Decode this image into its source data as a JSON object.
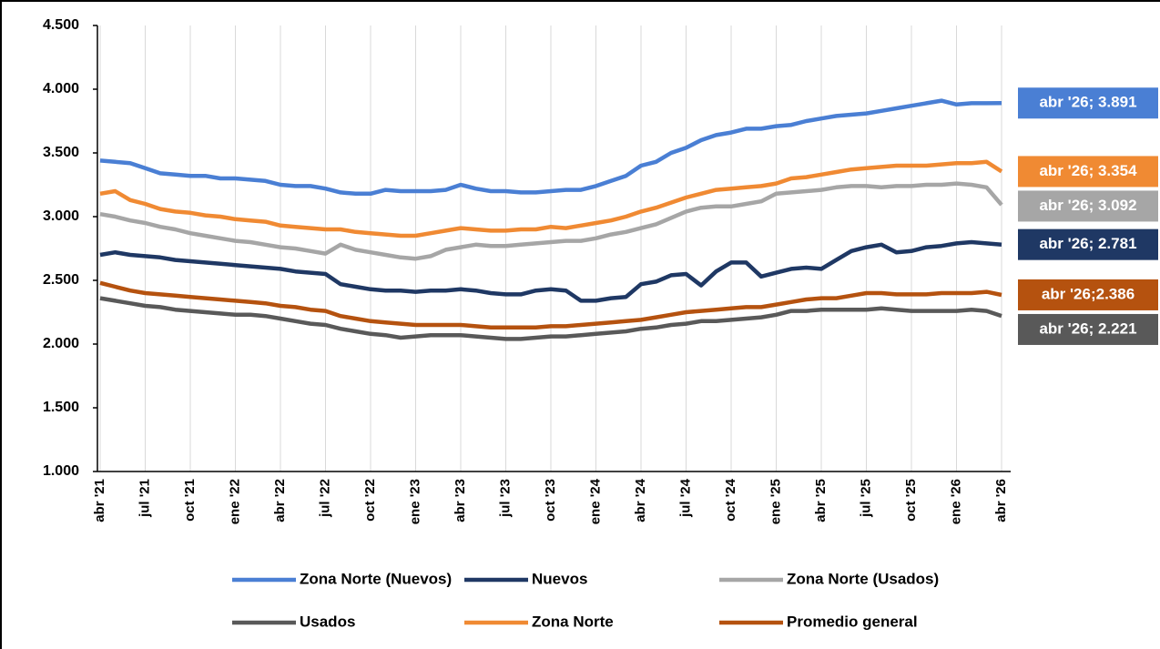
{
  "chart_data": {
    "type": "line",
    "categories": [
      "abr '21",
      null,
      null,
      "jul '21",
      null,
      null,
      "oct '21",
      null,
      null,
      "ene '22",
      null,
      null,
      "abr '22",
      null,
      null,
      "jul '22",
      null,
      null,
      "oct '22",
      null,
      null,
      "ene '23",
      null,
      null,
      "abr '23",
      null,
      null,
      "jul '23",
      null,
      null,
      "oct '23",
      null,
      null,
      "ene '24",
      null,
      null,
      "abr '24",
      null,
      null,
      "jul '24",
      null,
      null,
      "oct '24",
      null,
      null,
      "ene '25",
      null,
      null,
      "abr '25",
      null,
      null,
      "jul '25",
      null,
      null,
      "oct '25",
      null,
      null,
      "ene '26",
      null,
      null,
      "abr '26"
    ],
    "ylim": [
      1000,
      4500
    ],
    "yticks": [
      {
        "value": 1000,
        "label": "1.000"
      },
      {
        "value": 1500,
        "label": "1.500"
      },
      {
        "value": 2000,
        "label": "2.000"
      },
      {
        "value": 2500,
        "label": "2.500"
      },
      {
        "value": 3000,
        "label": "3.000"
      },
      {
        "value": 3500,
        "label": "3.500"
      },
      {
        "value": 4000,
        "label": "4.000"
      },
      {
        "value": 4500,
        "label": "4.500"
      }
    ],
    "x_grid": true,
    "legend": "bottom",
    "series": [
      {
        "name": "Zona Norte (Nuevos)",
        "color": "#4a7fd4",
        "values": [
          3440,
          3430,
          3420,
          3380,
          3340,
          3330,
          3320,
          3320,
          3300,
          3300,
          3290,
          3280,
          3250,
          3240,
          3240,
          3220,
          3190,
          3180,
          3180,
          3210,
          3200,
          3200,
          3200,
          3210,
          3250,
          3220,
          3200,
          3200,
          3190,
          3190,
          3200,
          3210,
          3210,
          3240,
          3280,
          3320,
          3400,
          3430,
          3500,
          3540,
          3600,
          3640,
          3660,
          3690,
          3690,
          3710,
          3720,
          3750,
          3770,
          3790,
          3800,
          3810,
          3830,
          3850,
          3870,
          3890,
          3910,
          3880,
          3890,
          3890,
          3891
        ],
        "value_labels": [
          null,
          null,
          null,
          null,
          null,
          null,
          null,
          null,
          null,
          null,
          null,
          null,
          null,
          null,
          null,
          null,
          null,
          null,
          null,
          null,
          null,
          null,
          null,
          null,
          null,
          null,
          null,
          null,
          null,
          null,
          null,
          null,
          null,
          null,
          null,
          null,
          null,
          null,
          null,
          null,
          null,
          null,
          null,
          null,
          null,
          null,
          null,
          null,
          null,
          null,
          null,
          null,
          null,
          null,
          null,
          null,
          null,
          null,
          null,
          null,
          "abr '26; 3.891"
        ]
      },
      {
        "name": "Nuevos",
        "color": "#1f3864",
        "values": [
          2700,
          2720,
          2700,
          2690,
          2680,
          2660,
          2650,
          2640,
          2630,
          2620,
          2610,
          2600,
          2590,
          2570,
          2560,
          2550,
          2470,
          2450,
          2430,
          2420,
          2420,
          2410,
          2420,
          2420,
          2430,
          2420,
          2400,
          2390,
          2390,
          2420,
          2430,
          2420,
          2340,
          2340,
          2360,
          2370,
          2470,
          2490,
          2540,
          2550,
          2460,
          2570,
          2640,
          2640,
          2530,
          2560,
          2590,
          2600,
          2590,
          2660,
          2730,
          2760,
          2780,
          2720,
          2730,
          2760,
          2770,
          2790,
          2800,
          2790,
          2781
        ],
        "value_labels": [
          null,
          null,
          null,
          null,
          null,
          null,
          null,
          null,
          null,
          null,
          null,
          null,
          null,
          null,
          null,
          null,
          null,
          null,
          null,
          null,
          null,
          null,
          null,
          null,
          null,
          null,
          null,
          null,
          null,
          null,
          null,
          null,
          null,
          null,
          null,
          null,
          null,
          null,
          null,
          null,
          null,
          null,
          null,
          null,
          null,
          null,
          null,
          null,
          null,
          null,
          null,
          null,
          null,
          null,
          null,
          null,
          null,
          null,
          null,
          null,
          "abr '26; 2.781"
        ]
      },
      {
        "name": "Zona Norte (Usados)",
        "color": "#a6a6a6",
        "values": [
          3020,
          3000,
          2970,
          2950,
          2920,
          2900,
          2870,
          2850,
          2830,
          2810,
          2800,
          2780,
          2760,
          2750,
          2730,
          2710,
          2780,
          2740,
          2720,
          2700,
          2680,
          2670,
          2690,
          2740,
          2760,
          2780,
          2770,
          2770,
          2780,
          2790,
          2800,
          2810,
          2810,
          2830,
          2860,
          2880,
          2910,
          2940,
          2990,
          3040,
          3070,
          3080,
          3080,
          3100,
          3120,
          3180,
          3190,
          3200,
          3210,
          3230,
          3240,
          3240,
          3230,
          3240,
          3240,
          3250,
          3250,
          3260,
          3250,
          3230,
          3092
        ],
        "value_labels": [
          null,
          null,
          null,
          null,
          null,
          null,
          null,
          null,
          null,
          null,
          null,
          null,
          null,
          null,
          null,
          null,
          null,
          null,
          null,
          null,
          null,
          null,
          null,
          null,
          null,
          null,
          null,
          null,
          null,
          null,
          null,
          null,
          null,
          null,
          null,
          null,
          null,
          null,
          null,
          null,
          null,
          null,
          null,
          null,
          null,
          null,
          null,
          null,
          null,
          null,
          null,
          null,
          null,
          null,
          null,
          null,
          null,
          null,
          null,
          null,
          "abr '26; 3.092"
        ]
      },
      {
        "name": "Usados",
        "color": "#595959",
        "values": [
          2360,
          2340,
          2320,
          2300,
          2290,
          2270,
          2260,
          2250,
          2240,
          2230,
          2230,
          2220,
          2200,
          2180,
          2160,
          2150,
          2120,
          2100,
          2080,
          2070,
          2050,
          2060,
          2070,
          2070,
          2070,
          2060,
          2050,
          2040,
          2040,
          2050,
          2060,
          2060,
          2070,
          2080,
          2090,
          2100,
          2120,
          2130,
          2150,
          2160,
          2180,
          2180,
          2190,
          2200,
          2210,
          2230,
          2260,
          2260,
          2270,
          2270,
          2270,
          2270,
          2280,
          2270,
          2260,
          2260,
          2260,
          2260,
          2270,
          2260,
          2221
        ],
        "value_labels": [
          null,
          null,
          null,
          null,
          null,
          null,
          null,
          null,
          null,
          null,
          null,
          null,
          null,
          null,
          null,
          null,
          null,
          null,
          null,
          null,
          null,
          null,
          null,
          null,
          null,
          null,
          null,
          null,
          null,
          null,
          null,
          null,
          null,
          null,
          null,
          null,
          null,
          null,
          null,
          null,
          null,
          null,
          null,
          null,
          null,
          null,
          null,
          null,
          null,
          null,
          null,
          null,
          null,
          null,
          null,
          null,
          null,
          null,
          null,
          null,
          "abr '26; 2.221"
        ]
      },
      {
        "name": "Zona Norte",
        "color": "#f08a33",
        "values": [
          3180,
          3200,
          3130,
          3100,
          3060,
          3040,
          3030,
          3010,
          3000,
          2980,
          2970,
          2960,
          2930,
          2920,
          2910,
          2900,
          2900,
          2880,
          2870,
          2860,
          2850,
          2850,
          2870,
          2890,
          2910,
          2900,
          2890,
          2890,
          2900,
          2900,
          2920,
          2910,
          2930,
          2950,
          2970,
          3000,
          3040,
          3070,
          3110,
          3150,
          3180,
          3210,
          3220,
          3230,
          3240,
          3260,
          3300,
          3310,
          3330,
          3350,
          3370,
          3380,
          3390,
          3400,
          3400,
          3400,
          3410,
          3420,
          3420,
          3430,
          3354
        ],
        "value_labels": [
          null,
          null,
          null,
          null,
          null,
          null,
          null,
          null,
          null,
          null,
          null,
          null,
          null,
          null,
          null,
          null,
          null,
          null,
          null,
          null,
          null,
          null,
          null,
          null,
          null,
          null,
          null,
          null,
          null,
          null,
          null,
          null,
          null,
          null,
          null,
          null,
          null,
          null,
          null,
          null,
          null,
          null,
          null,
          null,
          null,
          null,
          null,
          null,
          null,
          null,
          null,
          null,
          null,
          null,
          null,
          null,
          null,
          null,
          null,
          null,
          "abr '26; 3.354"
        ]
      },
      {
        "name": "Promedio general",
        "color": "#b5520f",
        "values": [
          2480,
          2450,
          2420,
          2400,
          2390,
          2380,
          2370,
          2360,
          2350,
          2340,
          2330,
          2320,
          2300,
          2290,
          2270,
          2260,
          2220,
          2200,
          2180,
          2170,
          2160,
          2150,
          2150,
          2150,
          2150,
          2140,
          2130,
          2130,
          2130,
          2130,
          2140,
          2140,
          2150,
          2160,
          2170,
          2180,
          2190,
          2210,
          2230,
          2250,
          2260,
          2270,
          2280,
          2290,
          2290,
          2310,
          2330,
          2350,
          2360,
          2360,
          2380,
          2400,
          2400,
          2390,
          2390,
          2390,
          2400,
          2400,
          2400,
          2410,
          2386
        ],
        "value_labels": [
          null,
          null,
          null,
          null,
          null,
          null,
          null,
          null,
          null,
          null,
          null,
          null,
          null,
          null,
          null,
          null,
          null,
          null,
          null,
          null,
          null,
          null,
          null,
          null,
          null,
          null,
          null,
          null,
          null,
          null,
          null,
          null,
          null,
          null,
          null,
          null,
          null,
          null,
          null,
          null,
          null,
          null,
          null,
          null,
          null,
          null,
          null,
          null,
          null,
          null,
          null,
          null,
          null,
          null,
          null,
          null,
          null,
          null,
          null,
          null,
          "abr '26;2.386"
        ]
      }
    ]
  }
}
